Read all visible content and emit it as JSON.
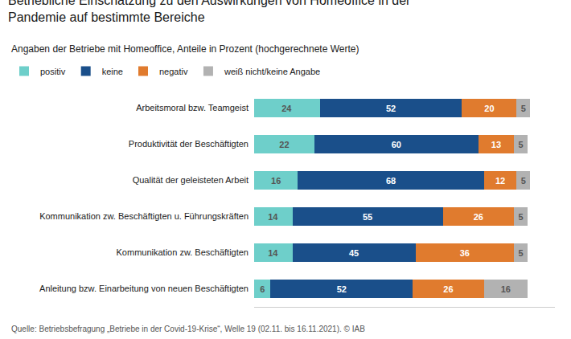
{
  "chart_data": {
    "type": "bar",
    "orientation": "horizontal",
    "stacked": true,
    "title": "Betriebliche Einschätzung zu den Auswirkungen von Homeoffice in der\nPandemie auf bestimmte Bereiche",
    "subtitle": "Angaben der Betriebe mit Homeoffice, Anteile in Prozent (hochgerechnete Werte)",
    "annotations": [
      "Quelle: Betriebsbefragung „Betriebe in der Covid-19-Krise“, Welle 19 (02.11. bis 16.11.2021). © IAB"
    ],
    "categories": [
      "Arbeitsmoral bzw. Teamgeist",
      "Produktivität der Beschäftigten",
      "Qualität der geleisteten Arbeit",
      "Kommunikation zw. Beschäftigten u. Führungskräften",
      "Kommunikation zw. Beschäftigten",
      "Anleitung bzw. Einarbeitung von neuen Beschäftigten"
    ],
    "series": [
      {
        "name": "positiv",
        "color": "#6ecfca",
        "values": [
          24,
          22,
          16,
          14,
          14,
          6
        ]
      },
      {
        "name": "keine",
        "color": "#1a4f8a",
        "values": [
          52,
          60,
          68,
          55,
          45,
          52
        ]
      },
      {
        "name": "negativ",
        "color": "#e07b2e",
        "values": [
          20,
          13,
          12,
          26,
          36,
          26
        ]
      },
      {
        "name": "weiß nicht/keine Angabe",
        "color": "#b2b2b2",
        "values": [
          5,
          5,
          5,
          5,
          5,
          16
        ]
      }
    ],
    "xlim": [
      0,
      110
    ],
    "data_labels": true,
    "grid": false,
    "legend": "top left",
    "tick_labels": "y"
  }
}
